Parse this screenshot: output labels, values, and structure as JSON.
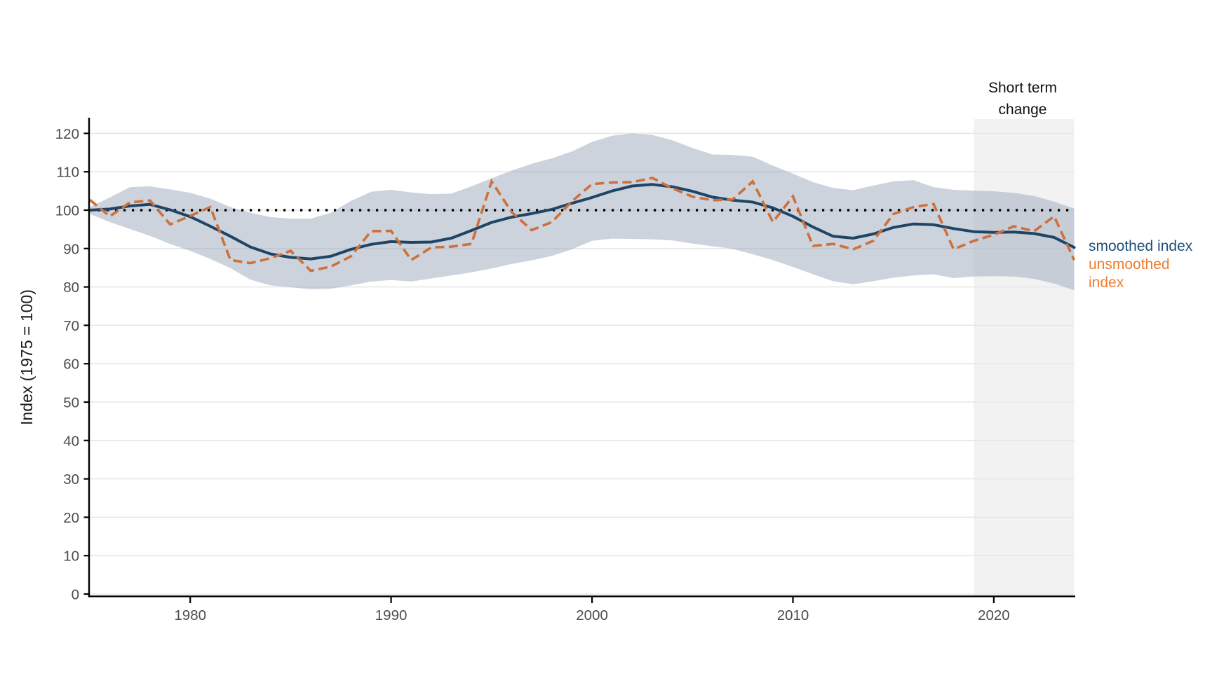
{
  "figure": {
    "ylabel": "Index (1975 = 100)",
    "annotation_line1": "Short term",
    "annotation_line2": "change",
    "legend": {
      "smoothed_label": "smoothed index",
      "unsmoothed_label_line1": "unsmoothed",
      "unsmoothed_label_line2": "index"
    },
    "colors": {
      "smoothed_line": "#1F4566",
      "unsmoothed_line": "#CE703B",
      "smoothed_legend_text": "#1F4E79",
      "unsmoothed_legend_text": "#ED7D31",
      "ribbon": "rgba(153,167,187,0.5)",
      "shaded_region": "#F2F2F2",
      "gridline": "#E7E7E7",
      "reference_line": "#000000",
      "axis_line": "#000000",
      "tick_text": "#4d4d4d"
    }
  },
  "chart_data": {
    "type": "line",
    "title": "",
    "xlabel": "",
    "ylabel": "Index (1975 = 100)",
    "xlim": [
      1975,
      2024
    ],
    "ylim": [
      0,
      120
    ],
    "grid": "horizontal-only",
    "legend_position": "right-outside",
    "x_ticks": [
      1980,
      1990,
      2000,
      2010,
      2020
    ],
    "y_ticks": [
      0,
      10,
      20,
      30,
      40,
      50,
      60,
      70,
      80,
      90,
      100,
      110,
      120
    ],
    "reference_line": {
      "y": 100,
      "style": "dotted"
    },
    "shaded_region": {
      "x_start": 2019,
      "x_end": 2024,
      "label": "Short term change"
    },
    "x": [
      1975,
      1976,
      1977,
      1978,
      1979,
      1980,
      1981,
      1982,
      1983,
      1984,
      1985,
      1986,
      1987,
      1988,
      1989,
      1990,
      1991,
      1992,
      1993,
      1994,
      1995,
      1996,
      1997,
      1998,
      1999,
      2000,
      2001,
      2002,
      2003,
      2004,
      2005,
      2006,
      2007,
      2008,
      2009,
      2010,
      2011,
      2012,
      2013,
      2014,
      2015,
      2016,
      2017,
      2018,
      2019,
      2020,
      2021,
      2022,
      2023,
      2024
    ],
    "series": [
      {
        "name": "smoothed index",
        "style": "solid",
        "values": [
          100.0,
          100.3,
          101.1,
          101.5,
          100.1,
          98.3,
          95.8,
          93.2,
          90.4,
          88.6,
          87.7,
          87.3,
          88.0,
          89.8,
          91.1,
          91.8,
          91.6,
          91.7,
          92.7,
          94.7,
          96.8,
          98.2,
          99.1,
          100.2,
          101.8,
          103.3,
          105.0,
          106.3,
          106.7,
          106.1,
          104.9,
          103.4,
          102.6,
          102.1,
          100.6,
          98.4,
          95.6,
          93.2,
          92.7,
          93.8,
          95.5,
          96.4,
          96.2,
          95.2,
          94.4,
          94.2,
          94.3,
          93.9,
          92.9,
          90.3
        ]
      },
      {
        "name": "unsmoothed index",
        "style": "dashed",
        "values": [
          102.7,
          98.4,
          102.0,
          102.5,
          96.3,
          98.5,
          100.8,
          87.0,
          86.2,
          87.5,
          89.4,
          84.2,
          85.3,
          88.0,
          94.5,
          94.6,
          87.0,
          90.3,
          90.5,
          91.2,
          107.5,
          99.5,
          94.8,
          96.9,
          102.3,
          106.8,
          107.2,
          107.3,
          108.4,
          105.7,
          103.5,
          102.6,
          102.8,
          107.5,
          96.9,
          103.6,
          90.7,
          91.2,
          89.8,
          92.0,
          99.0,
          100.8,
          101.6,
          89.8,
          92.0,
          93.6,
          95.8,
          94.5,
          98.4,
          87.0
        ]
      },
      {
        "name": "confidence band lower",
        "style": "ribbon-lower",
        "values": [
          99.0,
          96.9,
          95.1,
          93.3,
          91.2,
          89.4,
          87.3,
          84.9,
          81.9,
          80.4,
          79.9,
          79.4,
          79.5,
          80.4,
          81.4,
          81.8,
          81.4,
          82.2,
          83.0,
          83.8,
          84.8,
          86.0,
          86.9,
          88.1,
          89.8,
          92.0,
          92.6,
          92.5,
          92.4,
          92.1,
          91.3,
          90.6,
          89.9,
          88.5,
          87.0,
          85.2,
          83.3,
          81.5,
          80.7,
          81.5,
          82.4,
          83.0,
          83.3,
          82.3,
          82.7,
          82.8,
          82.7,
          82.1,
          80.9,
          79.1
        ]
      },
      {
        "name": "confidence band upper",
        "style": "ribbon-upper",
        "values": [
          100.8,
          103.3,
          106.0,
          106.2,
          105.4,
          104.5,
          103.0,
          100.8,
          99.3,
          98.2,
          97.8,
          97.8,
          99.3,
          102.4,
          104.8,
          105.3,
          104.6,
          104.2,
          104.3,
          106.2,
          108.3,
          110.3,
          112.1,
          113.5,
          115.3,
          117.8,
          119.4,
          120.0,
          119.6,
          118.2,
          116.2,
          114.5,
          114.4,
          113.9,
          111.6,
          109.5,
          107.3,
          105.8,
          105.2,
          106.4,
          107.5,
          107.8,
          106.0,
          105.3,
          105.1,
          104.9,
          104.5,
          103.7,
          102.2,
          100.4
        ]
      }
    ]
  }
}
